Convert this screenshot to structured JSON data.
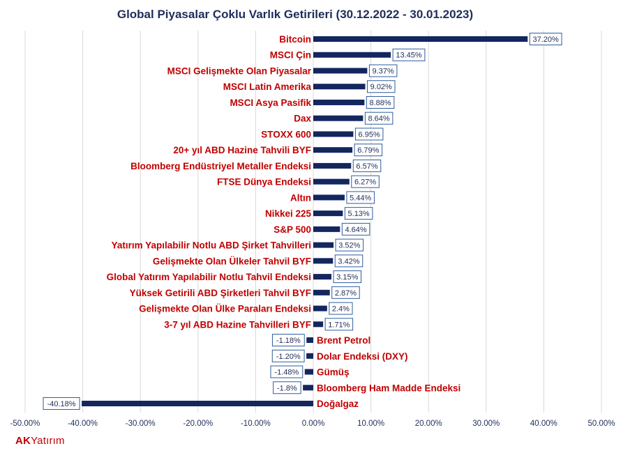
{
  "brand": {
    "part1": "AK",
    "part2": "Yatırım"
  },
  "colors": {
    "bar": "#13265e",
    "label": "#c00000",
    "grid": "#d9d9d9",
    "title": "#1f2d5a"
  },
  "chart_data": {
    "type": "bar",
    "orientation": "horizontal",
    "title": "Global Piyasalar Çoklu Varlık Getirileri (30.12.2022 - 30.01.2023)",
    "xlim": [
      -50,
      50
    ],
    "x_ticks": [
      -50,
      -40,
      -30,
      -20,
      -10,
      0,
      10,
      20,
      30,
      40,
      50
    ],
    "x_tick_labels": [
      "-50.00%",
      "-40.00%",
      "-30.00%",
      "-20.00%",
      "-10.00%",
      "0.00%",
      "10.00%",
      "20.00%",
      "30.00%",
      "40.00%",
      "50.00%"
    ],
    "grid": "vertical",
    "categories": [
      "Bitcoin",
      "MSCI Çin",
      "MSCI Gelişmekte Olan Piyasalar",
      "MSCI Latin Amerika",
      "MSCI Asya Pasifik",
      "Dax",
      "STOXX 600",
      "20+ yıl ABD Hazine Tahvili BYF",
      "Bloomberg Endüstriyel Metaller Endeksi",
      "FTSE Dünya Endeksi",
      "Altın",
      "Nikkei 225",
      "S&P 500",
      "Yatırım Yapılabilir Notlu  ABD Şirket Tahvilleri",
      "Gelişmekte Olan Ülkeler Tahvil BYF",
      "Global Yatırım Yapılabilir Notlu Tahvil Endeksi",
      "Yüksek Getirili ABD Şirketleri Tahvil BYF",
      "Gelişmekte Olan Ülke Paraları Endeksi",
      "3-7 yıl ABD Hazine Tahvilleri BYF",
      "Brent Petrol",
      "Dolar Endeksi (DXY)",
      "Gümüş",
      "Bloomberg Ham Madde Endeksi",
      "Doğalgaz"
    ],
    "values": [
      37.2,
      13.45,
      9.37,
      9.02,
      8.88,
      8.64,
      6.95,
      6.79,
      6.57,
      6.27,
      5.44,
      5.13,
      4.64,
      3.52,
      3.42,
      3.15,
      2.87,
      2.4,
      1.71,
      -1.18,
      -1.2,
      -1.48,
      -1.8,
      -40.18
    ],
    "data_labels": [
      "37.20%",
      "13.45%",
      "9.37%",
      "9.02%",
      "8.88%",
      "8.64%",
      "6.95%",
      "6.79%",
      "6.57%",
      "6.27%",
      "5.44%",
      "5.13%",
      "4.64%",
      "3.52%",
      "3.42%",
      "3.15%",
      "2.87%",
      "2.4%",
      "1.71%",
      "-1.18%",
      "-1.20%",
      "-1.48%",
      "-1.8%",
      "-40.18%"
    ]
  }
}
